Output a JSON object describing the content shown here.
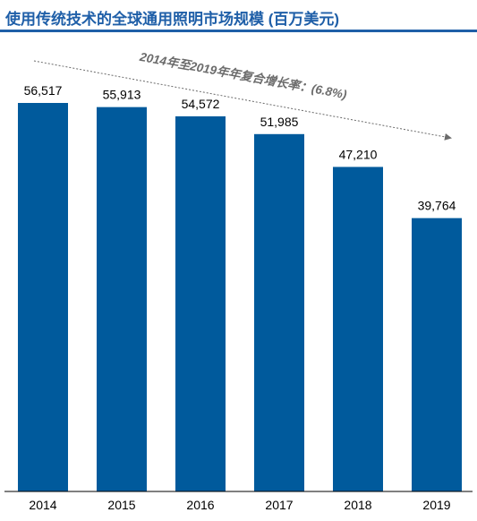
{
  "title": "使用传统技术的全球通用照明市场规模 (百万美元)",
  "colors": {
    "accent": "#1f5fa8",
    "bar": "#005a9c",
    "annotation": "#6b6b6b"
  },
  "chart_data": {
    "type": "bar",
    "title": "使用传统技术的全球通用照明市场规模 (百万美元)",
    "categories": [
      "2014",
      "2015",
      "2016",
      "2017",
      "2018",
      "2019"
    ],
    "values": [
      56517,
      55913,
      54572,
      51985,
      47210,
      39764
    ],
    "value_labels": [
      "56,517",
      "55,913",
      "54,572",
      "51,985",
      "47,210",
      "39,764"
    ],
    "ylim": [
      0,
      56517
    ],
    "grid": false,
    "legend": "none",
    "annotation": "2014年至2019年年复合增长率：(6.8%)"
  }
}
